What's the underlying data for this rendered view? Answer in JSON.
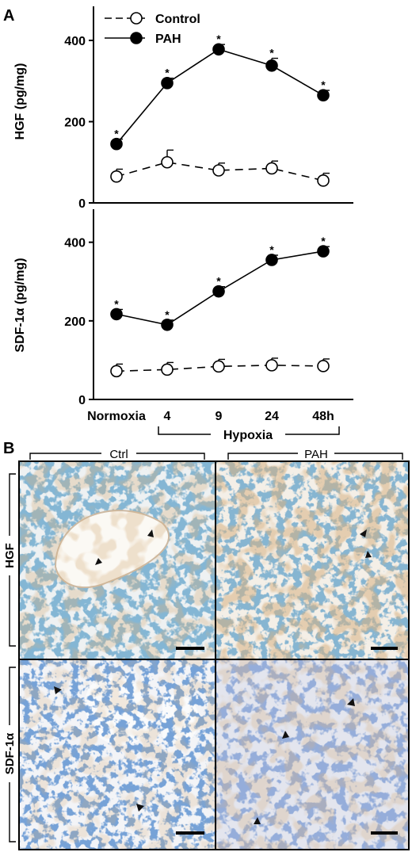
{
  "panel_a_label": "A",
  "panel_b_label": "B",
  "legend": {
    "control": "Control",
    "pah": "PAH"
  },
  "x_categories": [
    "Normoxia",
    "4",
    "9",
    "24",
    "48h"
  ],
  "x_group_label": "Hypoxia",
  "colors": {
    "ink": "#000000",
    "tissue_bg": "#f2f1ee",
    "nuclei": "#3b78a8",
    "stain_brown": "#b0733a",
    "counterstain_blue": "#6d8cc2"
  },
  "chart_data": [
    {
      "type": "line",
      "title": "",
      "xlabel": "",
      "ylabel": "HGF (pg/mg)",
      "categories": [
        "Normoxia",
        "4",
        "9",
        "24",
        "48h"
      ],
      "ylim": [
        0,
        480
      ],
      "yticks": [
        "0",
        "200",
        "400"
      ],
      "series": [
        {
          "name": "Control",
          "values": [
            65,
            100,
            80,
            85,
            55
          ],
          "errors": [
            18,
            30,
            18,
            18,
            18
          ]
        },
        {
          "name": "PAH",
          "values": [
            145,
            295,
            378,
            338,
            265
          ],
          "errors": [
            12,
            12,
            12,
            18,
            12
          ],
          "significance": [
            "*",
            "*",
            "*",
            "*",
            "*"
          ]
        }
      ]
    },
    {
      "type": "line",
      "title": "",
      "xlabel": "",
      "ylabel": "SDF-1α (pg/mg)",
      "categories": [
        "Normoxia",
        "4",
        "9",
        "24",
        "48h"
      ],
      "ylim": [
        0,
        480
      ],
      "yticks": [
        "0",
        "200",
        "400"
      ],
      "series": [
        {
          "name": "Control",
          "values": [
            72,
            76,
            84,
            87,
            85
          ],
          "errors": [
            18,
            18,
            18,
            18,
            18
          ]
        },
        {
          "name": "PAH",
          "values": [
            217,
            190,
            275,
            355,
            377
          ],
          "errors": [
            12,
            12,
            12,
            12,
            12
          ],
          "significance": [
            "*",
            "*",
            "*",
            "*",
            "*"
          ]
        }
      ]
    }
  ],
  "micrographs": {
    "col_labels": [
      "Ctrl",
      "PAH"
    ],
    "row_labels": [
      "HGF",
      "SDF-1α"
    ]
  }
}
